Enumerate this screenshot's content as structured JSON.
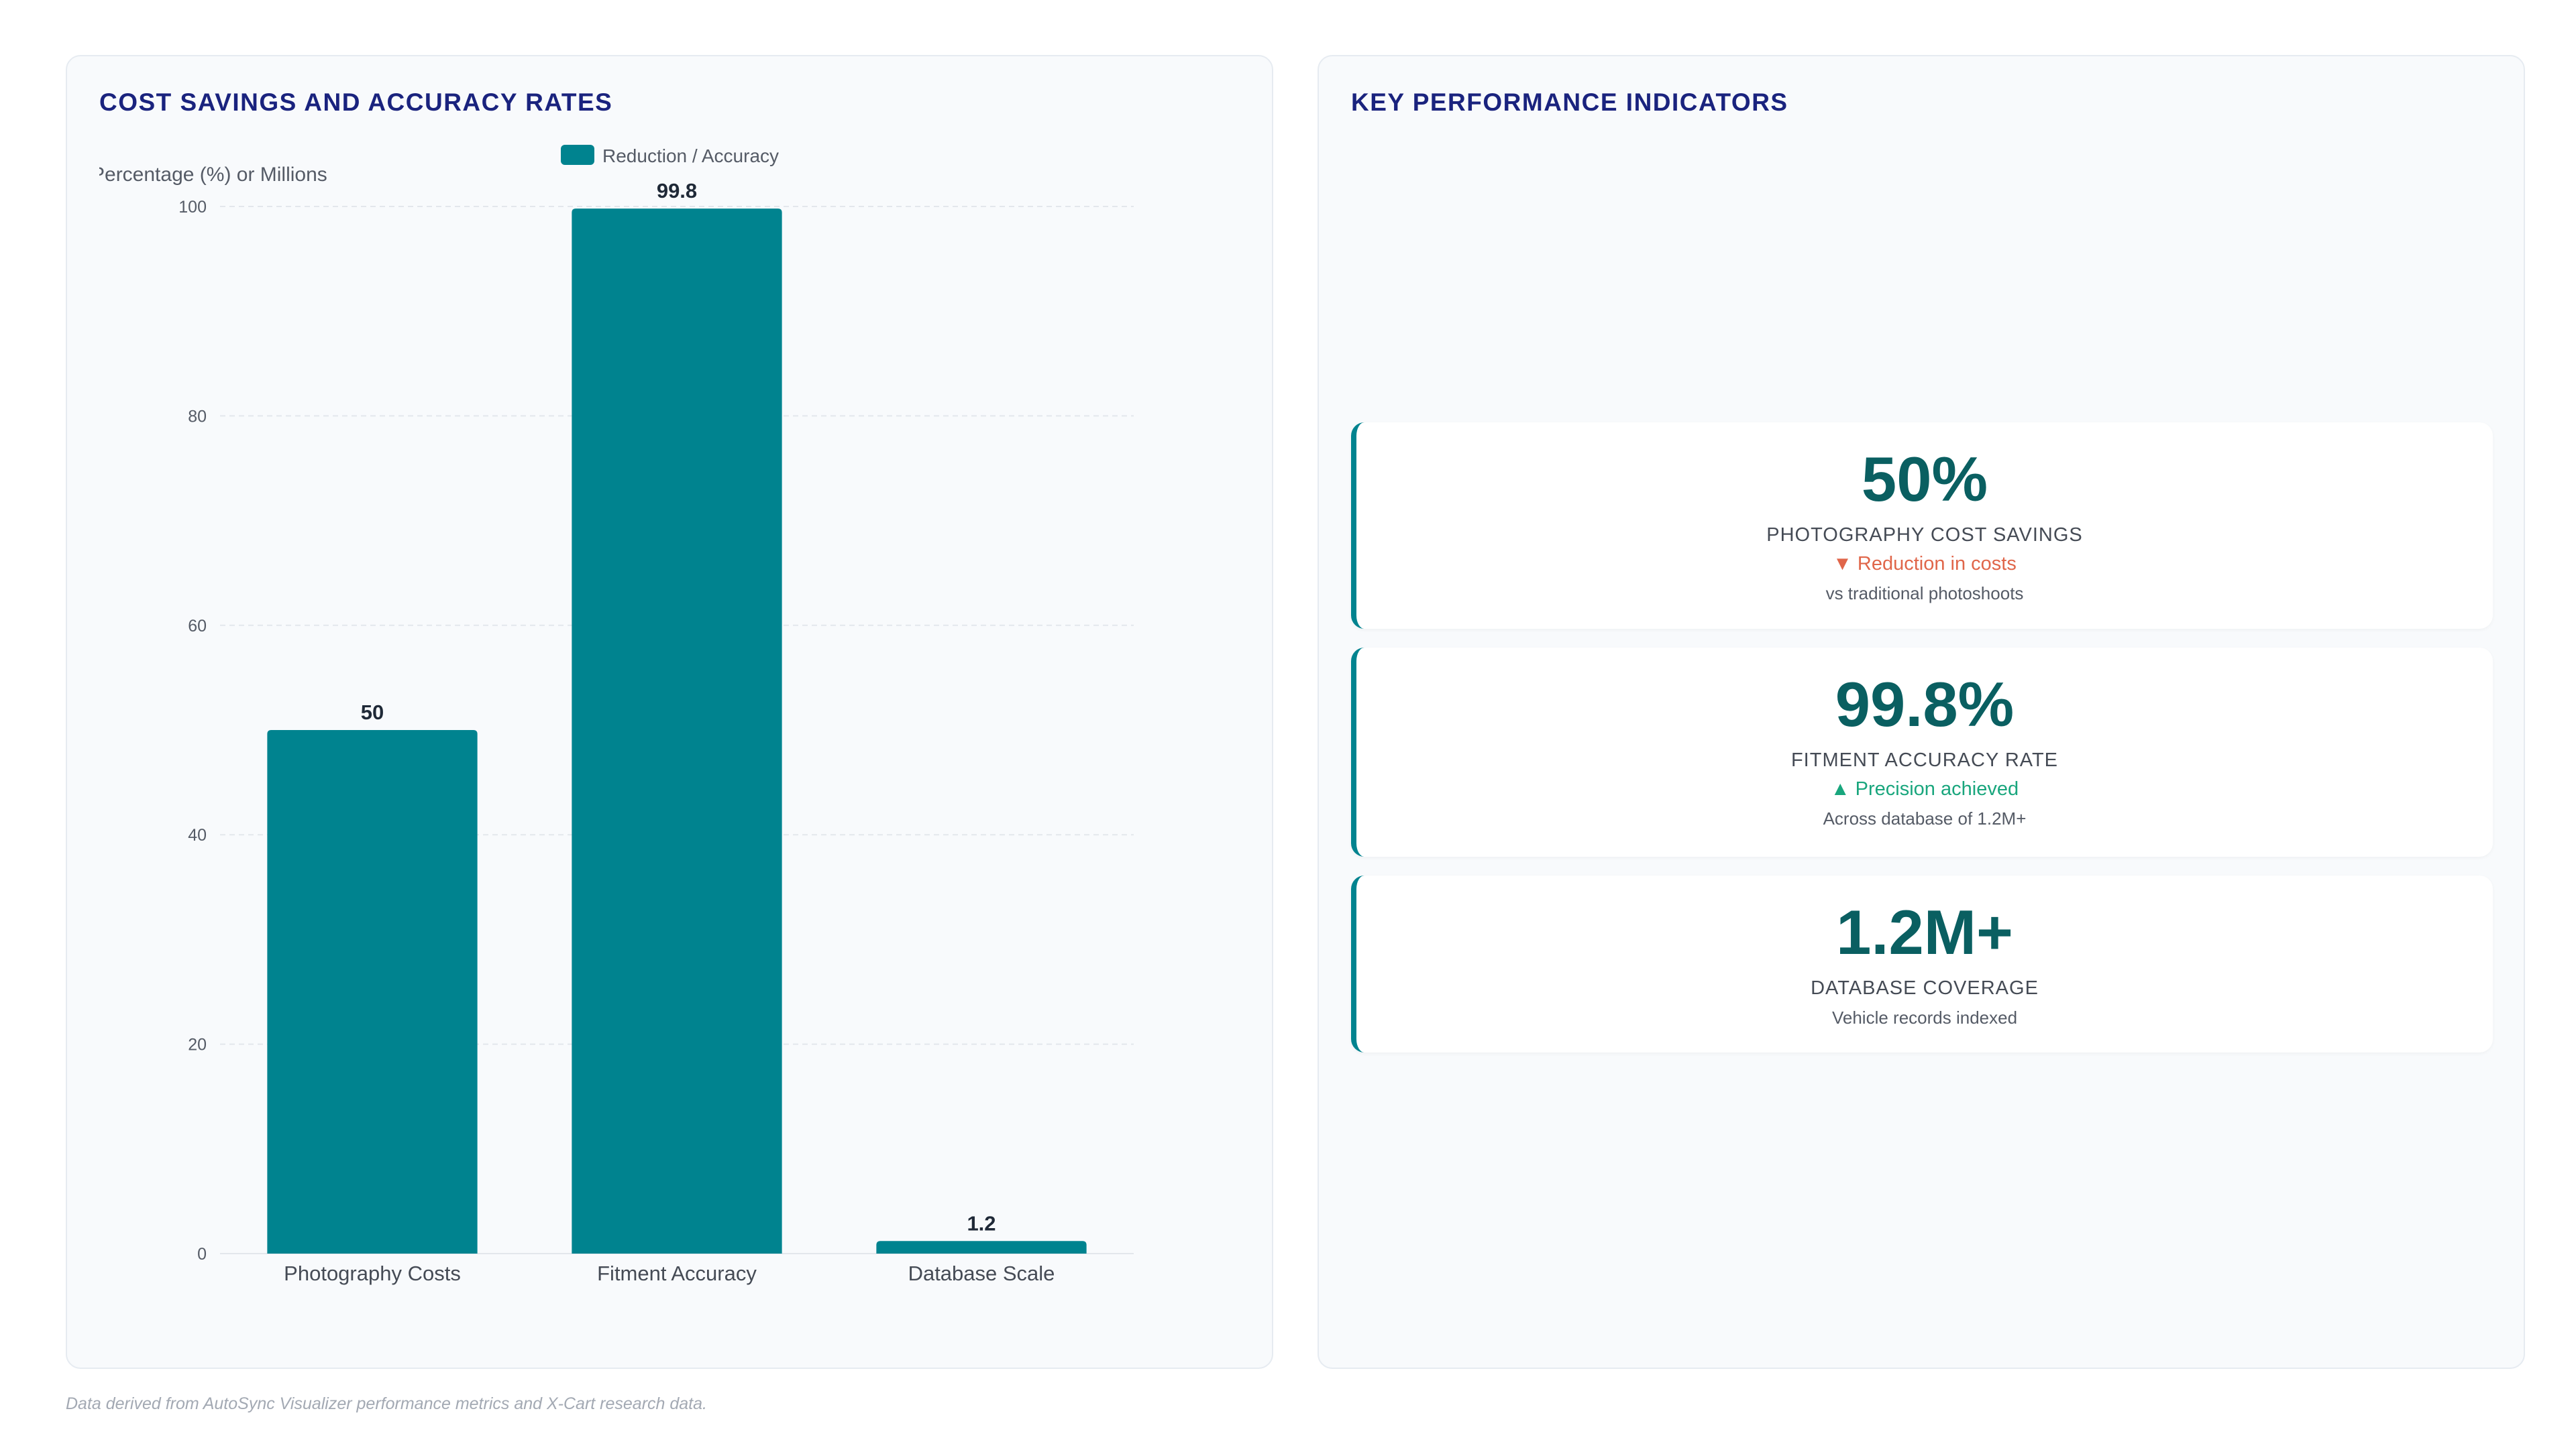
{
  "chart_panel": {
    "title": "COST SAVINGS AND ACCURACY RATES"
  },
  "kpi_panel": {
    "title": "KEY PERFORMANCE INDICATORS",
    "cards": [
      {
        "value": "50%",
        "label": "PHOTOGRAPHY COST SAVINGS",
        "trend": "▼ Reduction in costs",
        "trend_direction": "down",
        "sub": "vs traditional photoshoots"
      },
      {
        "value": "99.8%",
        "label": "FITMENT ACCURACY RATE",
        "trend": "▲ Precision achieved",
        "trend_direction": "up",
        "sub": "Across database of 1.2M+"
      },
      {
        "value": "1.2M+",
        "label": "DATABASE COVERAGE",
        "trend": "",
        "trend_direction": "",
        "sub": "Vehicle records indexed"
      }
    ]
  },
  "footer": {
    "note": "Data derived from AutoSync Visualizer performance metrics and X-Cart research data."
  },
  "colors": {
    "bar": "#00838f",
    "title": "#1a237e",
    "kpi_value": "#0a5f61",
    "trend_down": "#e0664a",
    "trend_up": "#19a67d"
  },
  "chart_data": {
    "type": "bar",
    "categories": [
      "Photography Costs",
      "Fitment Accuracy",
      "Database Scale"
    ],
    "series": [
      {
        "name": "Reduction / Accuracy",
        "values": [
          50,
          99.8,
          1.2
        ]
      }
    ],
    "data_labels": [
      "50",
      "99.8",
      "1.2"
    ],
    "ylabel": "Percentage (%) or Millions",
    "xlabel": "",
    "ylim": [
      0,
      100
    ],
    "yticks": [
      0,
      20,
      40,
      60,
      80,
      100
    ],
    "grid": true,
    "legend_position": "top-center"
  }
}
